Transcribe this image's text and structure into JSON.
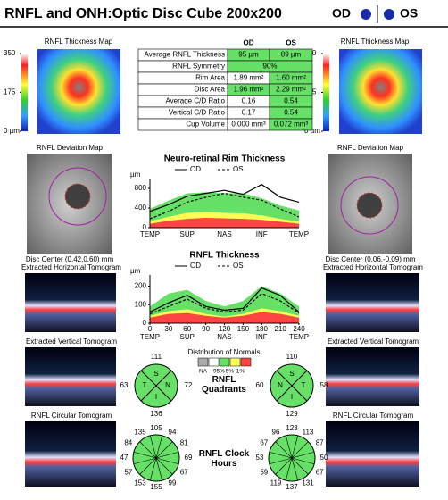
{
  "header": {
    "title": "RNFL and ONH:Optic Disc Cube 200x200",
    "od": "OD",
    "os": "OS"
  },
  "thickness_map": {
    "title": "RNFL Thickness Map",
    "scale_ticks": [
      350,
      175,
      {
        "value": 0,
        "label": "0 µm"
      }
    ],
    "ylim": [
      0,
      350
    ]
  },
  "deviation_map": {
    "title": "RNFL Deviation Map"
  },
  "od_disc_center": "Disc Center (0.42,0.60) mm",
  "os_disc_center": "Disc Center (0.06,-0.09) mm",
  "tomograms": {
    "horizontal": "Extracted Horizontal Tomogram",
    "vertical": "Extracted Vertical Tomogram",
    "circular": "RNFL Circular Tomogram"
  },
  "table": {
    "columns": [
      "OD",
      "OS"
    ],
    "rows": [
      {
        "label": "Average RNFL Thickness",
        "od": "95 µm",
        "os": "89 µm",
        "od_color": "#66e066",
        "os_color": "#66e066"
      },
      {
        "label": "RNFL Symmetry",
        "both": "90%",
        "color": "#66e066"
      },
      {
        "label": "Rim Area",
        "od": "1.89 mm²",
        "os": "1.60 mm²",
        "od_color": "#ffffff",
        "os_color": "#66e066"
      },
      {
        "label": "Disc Area",
        "od": "1.96 mm²",
        "os": "2.29 mm²",
        "od_color": "#66e066",
        "os_color": "#66e066"
      },
      {
        "label": "Average C/D Ratio",
        "od": "0.16",
        "os": "0.54",
        "od_color": "#ffffff",
        "os_color": "#66e066"
      },
      {
        "label": "Vertical C/D Ratio",
        "od": "0.17",
        "os": "0.54",
        "od_color": "#ffffff",
        "os_color": "#66e066"
      },
      {
        "label": "Cup Volume",
        "od": "0.000 mm³",
        "os": "0.072 mm³",
        "od_color": "#ffffff",
        "os_color": "#66e066"
      }
    ]
  },
  "rim_chart": {
    "type": "line",
    "title": "Neuro-retinal Rim Thickness",
    "y_unit": "µm",
    "ylim": [
      0,
      1000
    ],
    "yticks": [
      0,
      400,
      800
    ],
    "xlim": [
      0,
      240
    ],
    "region_labels": [
      {
        "value": 0,
        "label": "TEMP"
      },
      {
        "value": 60,
        "label": "SUP"
      },
      {
        "value": 120,
        "label": "NAS"
      },
      {
        "value": 180,
        "label": "INF"
      },
      {
        "value": 240,
        "label": "TEMP"
      }
    ],
    "x": [
      0,
      30,
      60,
      90,
      120,
      150,
      180,
      210,
      240
    ],
    "normals": {
      "p1": [
        80,
        140,
        180,
        200,
        190,
        180,
        160,
        120,
        80
      ],
      "p5": [
        130,
        220,
        300,
        320,
        300,
        290,
        250,
        180,
        120
      ],
      "p95": [
        380,
        550,
        700,
        720,
        700,
        700,
        600,
        450,
        350
      ]
    },
    "series": [
      {
        "name": "OD",
        "color": "#000000",
        "dash": false,
        "values": [
          330,
          470,
          640,
          700,
          760,
          680,
          880,
          620,
          520
        ]
      },
      {
        "name": "OS",
        "color": "#000000",
        "dash": true,
        "values": [
          180,
          330,
          520,
          620,
          700,
          620,
          560,
          380,
          220
        ]
      }
    ]
  },
  "rnfl_chart": {
    "type": "line",
    "title": "RNFL Thickness",
    "y_unit": "µm",
    "ylim": [
      0,
      260
    ],
    "yticks": [
      0,
      100,
      200
    ],
    "xlim": [
      0,
      240
    ],
    "xticks": [
      0,
      30,
      60,
      90,
      120,
      150,
      180,
      210,
      240
    ],
    "region_labels": [
      {
        "value": 0,
        "label": "TEMP"
      },
      {
        "value": 60,
        "label": "SUP"
      },
      {
        "value": 120,
        "label": "NAS"
      },
      {
        "value": 180,
        "label": "INF"
      },
      {
        "value": 240,
        "label": "TEMP"
      }
    ],
    "x": [
      0,
      30,
      60,
      90,
      120,
      150,
      180,
      210,
      240
    ],
    "normals": {
      "p1": [
        30,
        50,
        55,
        40,
        30,
        40,
        60,
        50,
        30
      ],
      "p5": [
        40,
        65,
        75,
        50,
        35,
        50,
        80,
        65,
        40
      ],
      "p95": [
        90,
        160,
        180,
        120,
        90,
        120,
        200,
        160,
        90
      ]
    },
    "series": [
      {
        "name": "OD",
        "color": "#000000",
        "dash": false,
        "values": [
          60,
          110,
          150,
          90,
          70,
          80,
          190,
          150,
          60
        ]
      },
      {
        "name": "OS",
        "color": "#000000",
        "dash": true,
        "values": [
          50,
          90,
          130,
          80,
          60,
          70,
          160,
          120,
          55
        ]
      }
    ]
  },
  "normals_legend": {
    "title": "Distribution of Normals",
    "labels": [
      "NA",
      "95%",
      "5%",
      "1%"
    ],
    "colors": [
      "#aaaaaa",
      "#ffffff",
      "#66e066",
      "#ffff55",
      "#ff4444"
    ]
  },
  "quadrants": {
    "title": "RNFL Quadrants",
    "color": "#66e066",
    "od": {
      "labels": [
        "S",
        "N",
        "I",
        "T"
      ],
      "values": [
        111,
        72,
        136,
        63
      ]
    },
    "os": {
      "labels": [
        "S",
        "T",
        "I",
        "N"
      ],
      "values": [
        110,
        58,
        129,
        60
      ]
    }
  },
  "clock_hours": {
    "title": "RNFL Clock Hours",
    "color": "#66e066",
    "od": [
      105,
      94,
      81,
      69,
      67,
      99,
      155,
      153,
      57,
      47,
      84,
      135
    ],
    "os": [
      123,
      113,
      87,
      50,
      67,
      131,
      137,
      119,
      59,
      53,
      67,
      96
    ]
  }
}
